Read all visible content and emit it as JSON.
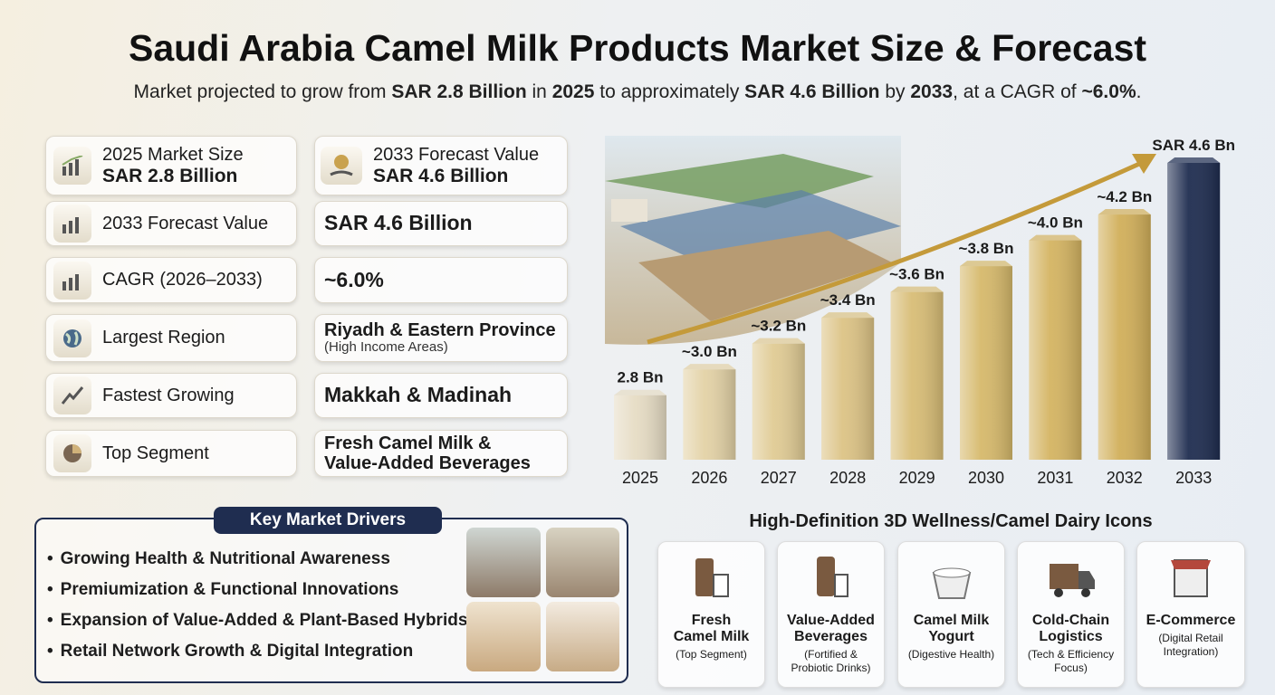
{
  "title": "Saudi Arabia Camel Milk Products Market Size & Forecast",
  "subtitle": [
    {
      "text": "Market projected to grow from ",
      "bold": false
    },
    {
      "text": "SAR 2.8 Billion",
      "bold": true
    },
    {
      "text": " in ",
      "bold": false
    },
    {
      "text": "2025",
      "bold": true
    },
    {
      "text": " to approximately ",
      "bold": false
    },
    {
      "text": "SAR 4.6 Billion",
      "bold": true
    },
    {
      "text": " by ",
      "bold": false
    },
    {
      "text": "2033",
      "bold": true
    },
    {
      "text": ", at a CAGR of ",
      "bold": false
    },
    {
      "text": "~6.0%",
      "bold": true
    },
    {
      "text": ".",
      "bold": false
    }
  ],
  "highlights": [
    {
      "label": "2025 Market Size",
      "value": "SAR 2.8 Billion"
    },
    {
      "label": "2033 Forecast Value",
      "value": "SAR 4.6 Billion"
    }
  ],
  "metrics": [
    {
      "label": "2033 Forecast Value",
      "value": [
        "SAR 4.6 Billion"
      ]
    },
    {
      "label": "CAGR (2026–2033)",
      "value": [
        "~6.0%"
      ]
    },
    {
      "label": "Largest Region",
      "value": [
        "Riyadh & Eastern Province"
      ],
      "note": "(High Income Areas)"
    },
    {
      "label": "Fastest Growing",
      "value": [
        "Makkah & Madinah"
      ]
    },
    {
      "label": "Top Segment",
      "value": [
        "Fresh Camel Milk &",
        "Value-Added Beverages"
      ]
    }
  ],
  "drivers": {
    "title": "Key Market Drivers",
    "items": [
      "Growing Health & Nutritional Awareness",
      "Premiumization & Functional Innovations",
      "Expansion of Value-Added & Plant-Based Hybrids",
      "Retail Network Growth & Digital Integration"
    ]
  },
  "icons": {
    "title": "High-Definition 3D Wellness/Camel Dairy Icons",
    "cards": [
      {
        "name": [
          "Fresh",
          "Camel Milk"
        ],
        "note": [
          "(Top Segment)"
        ]
      },
      {
        "name": [
          "Value-Added",
          "Beverages"
        ],
        "note": [
          "(Fortified &",
          "Probiotic Drinks)"
        ]
      },
      {
        "name": [
          "Camel Milk",
          "Yogurt"
        ],
        "note": [
          "(Digestive Health)"
        ]
      },
      {
        "name": [
          "Cold-Chain",
          "Logistics"
        ],
        "note": [
          "(Tech & Efficiency",
          "Focus)"
        ]
      },
      {
        "name": [
          "E-Commerce"
        ],
        "note": [
          "(Digital Retail",
          "Integration)"
        ]
      }
    ]
  },
  "chart_data": {
    "type": "bar",
    "categories": [
      "2025",
      "2026",
      "2027",
      "2028",
      "2029",
      "2030",
      "2031",
      "2032",
      "2033"
    ],
    "values": [
      2.8,
      3.0,
      3.2,
      3.4,
      3.6,
      3.8,
      4.0,
      4.2,
      4.6
    ],
    "value_labels": [
      "2.8 Bn",
      "~3.0 Bn",
      "~3.2 Bn",
      "~3.4 Bn",
      "~3.6 Bn",
      "~3.8 Bn",
      "~4.0 Bn",
      "~4.2 Bn",
      "SAR 4.6 Bn"
    ],
    "colors": [
      "#e6dcc4",
      "#e3d2a6",
      "#e0cb94",
      "#dcc385",
      "#d8bd76",
      "#d6b96b",
      "#d4b462",
      "#d1af5a",
      "#1f2d50"
    ],
    "ylim": [
      2.3,
      4.6
    ]
  }
}
